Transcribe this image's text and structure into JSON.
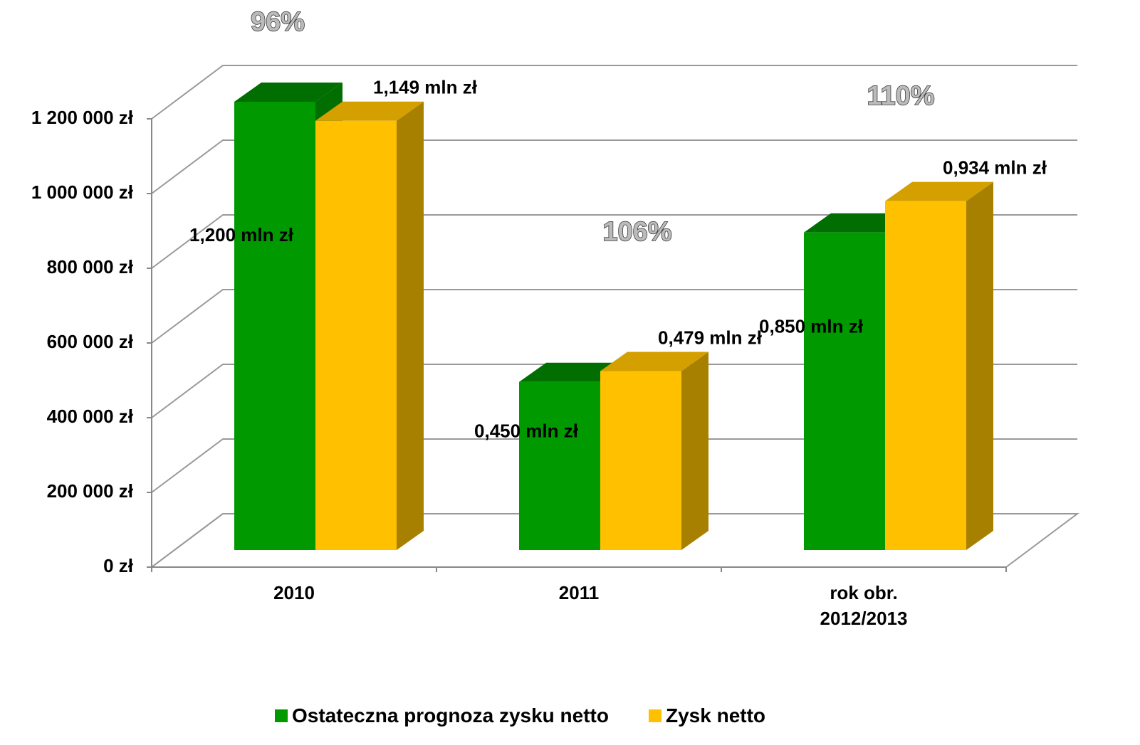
{
  "chart_data": {
    "type": "bar3d",
    "categories": [
      "2010",
      "2011",
      "rok obr. 2012/2013"
    ],
    "series": [
      {
        "name": "Ostateczna prognoza zysku netto",
        "color": "#009a00",
        "top_color": "#006e00",
        "values": [
          1200000,
          450000,
          850000
        ],
        "value_labels": [
          "1,200 mln zł",
          "0,450 mln zł",
          "0,850 mln zł"
        ]
      },
      {
        "name": "Zysk netto",
        "color": "#ffc000",
        "top_color": "#d4a000",
        "side_color": "#a88000",
        "values": [
          1149000,
          479000,
          934000
        ],
        "value_labels": [
          "1,149 mln zł",
          "0,479 mln zł",
          "0,934 mln zł"
        ]
      }
    ],
    "annotations": [
      "96%",
      "106%",
      "110%"
    ],
    "ylim": [
      0,
      1200000
    ],
    "yticks": [
      {
        "value": 0,
        "label": "0 zł"
      },
      {
        "value": 200000,
        "label": "200 000 zł"
      },
      {
        "value": 400000,
        "label": "400 000 zł"
      },
      {
        "value": 600000,
        "label": "600 000 zł"
      },
      {
        "value": 800000,
        "label": "800 000 zł"
      },
      {
        "value": 1000000,
        "label": "1 000 000 zł"
      },
      {
        "value": 1200000,
        "label": "1 200 000 zł"
      }
    ],
    "grid": true,
    "legend": "bottom"
  }
}
